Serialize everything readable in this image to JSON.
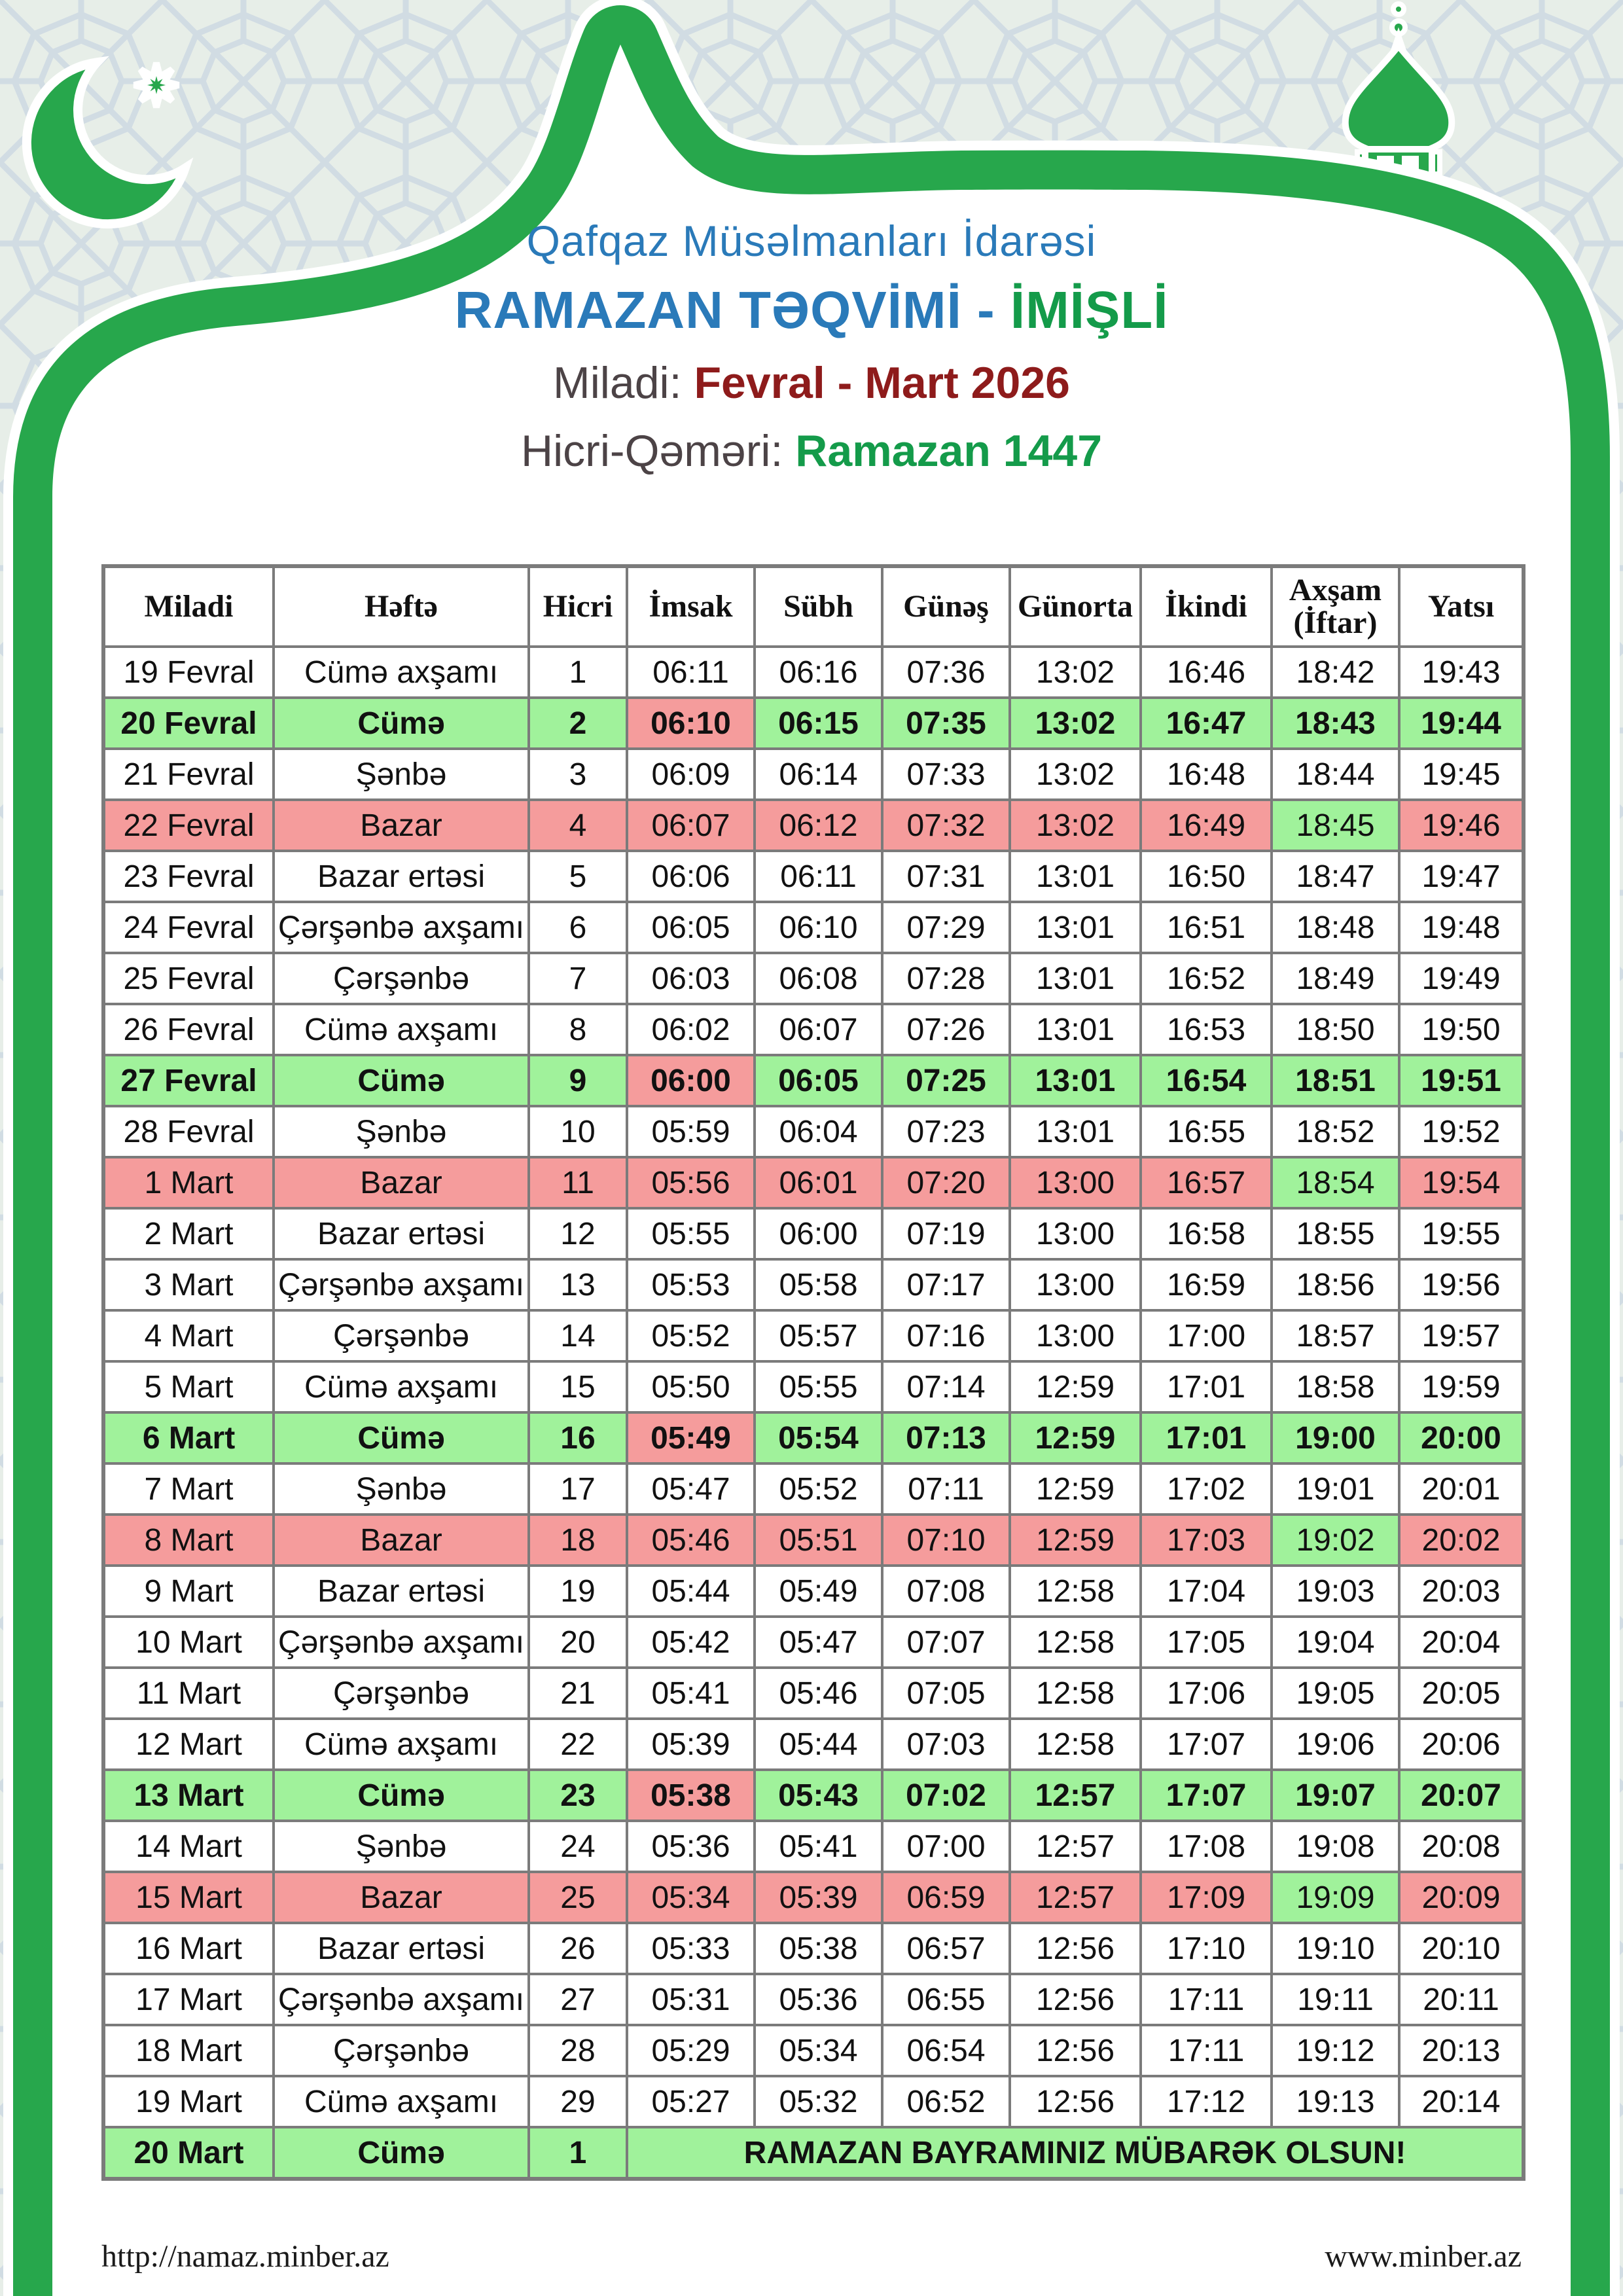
{
  "header": {
    "organization": "Qafqaz Müsəlmanları İdarəsi",
    "calendar_title": "RAMAZAN TƏQVİMİ - ",
    "city": "İMİŞLİ",
    "miladi_label": "Miladi: ",
    "miladi_value": "Fevral - Mart 2026",
    "hicri_label": "Hicri-Qəməri: ",
    "hicri_value": "Ramazan 1447"
  },
  "decorations": {
    "crescent_icon": "crescent-moon",
    "star_icon": "eight-point-star",
    "minaret_icon": "mosque-minaret",
    "frame": "ogee-arch-frame"
  },
  "colors": {
    "brand_green": "#27a74c",
    "cell_pink": "#f59c9c",
    "cell_green": "#a0f29b",
    "grid_gray": "#7b7b7b",
    "title_blue": "#2a7ab9",
    "city_green": "#149b4a",
    "date_red": "#8e1b1b",
    "label_gray": "#4c4346",
    "pattern_bg": "#e7eee8",
    "pattern_line": "#ccd7e3"
  },
  "table": {
    "headers": [
      "Miladi",
      "Həftə",
      "Hicri",
      "İmsak",
      "Sübh",
      "Günəş",
      "Günorta",
      "İkindi",
      "Axşam (İftar)",
      "Yatsı"
    ],
    "rows": [
      {
        "miladi": "19 Fevral",
        "hefte": "Cümə axşamı",
        "hicri": "1",
        "imsak": "06:11",
        "subh": "06:16",
        "gunes": "07:36",
        "gunorta": "13:02",
        "ikindi": "16:46",
        "axsam": "18:42",
        "yatsi": "19:43",
        "highlight": null
      },
      {
        "miladi": "20 Fevral",
        "hefte": "Cümə",
        "hicri": "2",
        "imsak": "06:10",
        "subh": "06:15",
        "gunes": "07:35",
        "gunorta": "13:02",
        "ikindi": "16:47",
        "axsam": "18:43",
        "yatsi": "19:44",
        "highlight": "friday"
      },
      {
        "miladi": "21 Fevral",
        "hefte": "Şənbə",
        "hicri": "3",
        "imsak": "06:09",
        "subh": "06:14",
        "gunes": "07:33",
        "gunorta": "13:02",
        "ikindi": "16:48",
        "axsam": "18:44",
        "yatsi": "19:45",
        "highlight": null
      },
      {
        "miladi": "22 Fevral",
        "hefte": "Bazar",
        "hicri": "4",
        "imsak": "06:07",
        "subh": "06:12",
        "gunes": "07:32",
        "gunorta": "13:02",
        "ikindi": "16:49",
        "axsam": "18:45",
        "yatsi": "19:46",
        "highlight": "sunday"
      },
      {
        "miladi": "23 Fevral",
        "hefte": "Bazar ertəsi",
        "hicri": "5",
        "imsak": "06:06",
        "subh": "06:11",
        "gunes": "07:31",
        "gunorta": "13:01",
        "ikindi": "16:50",
        "axsam": "18:47",
        "yatsi": "19:47",
        "highlight": null
      },
      {
        "miladi": "24 Fevral",
        "hefte": "Çərşənbə axşamı",
        "hicri": "6",
        "imsak": "06:05",
        "subh": "06:10",
        "gunes": "07:29",
        "gunorta": "13:01",
        "ikindi": "16:51",
        "axsam": "18:48",
        "yatsi": "19:48",
        "highlight": null
      },
      {
        "miladi": "25 Fevral",
        "hefte": "Çərşənbə",
        "hicri": "7",
        "imsak": "06:03",
        "subh": "06:08",
        "gunes": "07:28",
        "gunorta": "13:01",
        "ikindi": "16:52",
        "axsam": "18:49",
        "yatsi": "19:49",
        "highlight": null
      },
      {
        "miladi": "26 Fevral",
        "hefte": "Cümə axşamı",
        "hicri": "8",
        "imsak": "06:02",
        "subh": "06:07",
        "gunes": "07:26",
        "gunorta": "13:01",
        "ikindi": "16:53",
        "axsam": "18:50",
        "yatsi": "19:50",
        "highlight": null
      },
      {
        "miladi": "27 Fevral",
        "hefte": "Cümə",
        "hicri": "9",
        "imsak": "06:00",
        "subh": "06:05",
        "gunes": "07:25",
        "gunorta": "13:01",
        "ikindi": "16:54",
        "axsam": "18:51",
        "yatsi": "19:51",
        "highlight": "friday"
      },
      {
        "miladi": "28 Fevral",
        "hefte": "Şənbə",
        "hicri": "10",
        "imsak": "05:59",
        "subh": "06:04",
        "gunes": "07:23",
        "gunorta": "13:01",
        "ikindi": "16:55",
        "axsam": "18:52",
        "yatsi": "19:52",
        "highlight": null
      },
      {
        "miladi": "1 Mart",
        "hefte": "Bazar",
        "hicri": "11",
        "imsak": "05:56",
        "subh": "06:01",
        "gunes": "07:20",
        "gunorta": "13:00",
        "ikindi": "16:57",
        "axsam": "18:54",
        "yatsi": "19:54",
        "highlight": "sunday"
      },
      {
        "miladi": "2 Mart",
        "hefte": "Bazar ertəsi",
        "hicri": "12",
        "imsak": "05:55",
        "subh": "06:00",
        "gunes": "07:19",
        "gunorta": "13:00",
        "ikindi": "16:58",
        "axsam": "18:55",
        "yatsi": "19:55",
        "highlight": null
      },
      {
        "miladi": "3 Mart",
        "hefte": "Çərşənbə axşamı",
        "hicri": "13",
        "imsak": "05:53",
        "subh": "05:58",
        "gunes": "07:17",
        "gunorta": "13:00",
        "ikindi": "16:59",
        "axsam": "18:56",
        "yatsi": "19:56",
        "highlight": null
      },
      {
        "miladi": "4 Mart",
        "hefte": "Çərşənbə",
        "hicri": "14",
        "imsak": "05:52",
        "subh": "05:57",
        "gunes": "07:16",
        "gunorta": "13:00",
        "ikindi": "17:00",
        "axsam": "18:57",
        "yatsi": "19:57",
        "highlight": null
      },
      {
        "miladi": "5 Mart",
        "hefte": "Cümə axşamı",
        "hicri": "15",
        "imsak": "05:50",
        "subh": "05:55",
        "gunes": "07:14",
        "gunorta": "12:59",
        "ikindi": "17:01",
        "axsam": "18:58",
        "yatsi": "19:59",
        "highlight": null
      },
      {
        "miladi": "6 Mart",
        "hefte": "Cümə",
        "hicri": "16",
        "imsak": "05:49",
        "subh": "05:54",
        "gunes": "07:13",
        "gunorta": "12:59",
        "ikindi": "17:01",
        "axsam": "19:00",
        "yatsi": "20:00",
        "highlight": "friday"
      },
      {
        "miladi": "7 Mart",
        "hefte": "Şənbə",
        "hicri": "17",
        "imsak": "05:47",
        "subh": "05:52",
        "gunes": "07:11",
        "gunorta": "12:59",
        "ikindi": "17:02",
        "axsam": "19:01",
        "yatsi": "20:01",
        "highlight": null
      },
      {
        "miladi": "8 Mart",
        "hefte": "Bazar",
        "hicri": "18",
        "imsak": "05:46",
        "subh": "05:51",
        "gunes": "07:10",
        "gunorta": "12:59",
        "ikindi": "17:03",
        "axsam": "19:02",
        "yatsi": "20:02",
        "highlight": "sunday"
      },
      {
        "miladi": "9 Mart",
        "hefte": "Bazar ertəsi",
        "hicri": "19",
        "imsak": "05:44",
        "subh": "05:49",
        "gunes": "07:08",
        "gunorta": "12:58",
        "ikindi": "17:04",
        "axsam": "19:03",
        "yatsi": "20:03",
        "highlight": null
      },
      {
        "miladi": "10 Mart",
        "hefte": "Çərşənbə axşamı",
        "hicri": "20",
        "imsak": "05:42",
        "subh": "05:47",
        "gunes": "07:07",
        "gunorta": "12:58",
        "ikindi": "17:05",
        "axsam": "19:04",
        "yatsi": "20:04",
        "highlight": null
      },
      {
        "miladi": "11 Mart",
        "hefte": "Çərşənbə",
        "hicri": "21",
        "imsak": "05:41",
        "subh": "05:46",
        "gunes": "07:05",
        "gunorta": "12:58",
        "ikindi": "17:06",
        "axsam": "19:05",
        "yatsi": "20:05",
        "highlight": null
      },
      {
        "miladi": "12 Mart",
        "hefte": "Cümə axşamı",
        "hicri": "22",
        "imsak": "05:39",
        "subh": "05:44",
        "gunes": "07:03",
        "gunorta": "12:58",
        "ikindi": "17:07",
        "axsam": "19:06",
        "yatsi": "20:06",
        "highlight": null
      },
      {
        "miladi": "13 Mart",
        "hefte": "Cümə",
        "hicri": "23",
        "imsak": "05:38",
        "subh": "05:43",
        "gunes": "07:02",
        "gunorta": "12:57",
        "ikindi": "17:07",
        "axsam": "19:07",
        "yatsi": "20:07",
        "highlight": "friday"
      },
      {
        "miladi": "14 Mart",
        "hefte": "Şənbə",
        "hicri": "24",
        "imsak": "05:36",
        "subh": "05:41",
        "gunes": "07:00",
        "gunorta": "12:57",
        "ikindi": "17:08",
        "axsam": "19:08",
        "yatsi": "20:08",
        "highlight": null
      },
      {
        "miladi": "15 Mart",
        "hefte": "Bazar",
        "hicri": "25",
        "imsak": "05:34",
        "subh": "05:39",
        "gunes": "06:59",
        "gunorta": "12:57",
        "ikindi": "17:09",
        "axsam": "19:09",
        "yatsi": "20:09",
        "highlight": "sunday"
      },
      {
        "miladi": "16 Mart",
        "hefte": "Bazar ertəsi",
        "hicri": "26",
        "imsak": "05:33",
        "subh": "05:38",
        "gunes": "06:57",
        "gunorta": "12:56",
        "ikindi": "17:10",
        "axsam": "19:10",
        "yatsi": "20:10",
        "highlight": null
      },
      {
        "miladi": "17 Mart",
        "hefte": "Çərşənbə axşamı",
        "hicri": "27",
        "imsak": "05:31",
        "subh": "05:36",
        "gunes": "06:55",
        "gunorta": "12:56",
        "ikindi": "17:11",
        "axsam": "19:11",
        "yatsi": "20:11",
        "highlight": null
      },
      {
        "miladi": "18 Mart",
        "hefte": "Çərşənbə",
        "hicri": "28",
        "imsak": "05:29",
        "subh": "05:34",
        "gunes": "06:54",
        "gunorta": "12:56",
        "ikindi": "17:11",
        "axsam": "19:12",
        "yatsi": "20:13",
        "highlight": null
      },
      {
        "miladi": "19 Mart",
        "hefte": "Cümə axşamı",
        "hicri": "29",
        "imsak": "05:27",
        "subh": "05:32",
        "gunes": "06:52",
        "gunorta": "12:56",
        "ikindi": "17:12",
        "axsam": "19:13",
        "yatsi": "20:14",
        "highlight": null
      }
    ],
    "final_row": {
      "miladi": "20 Mart",
      "hefte": "Cümə",
      "hicri": "1",
      "message": "RAMAZAN BAYRAMINIZ MÜBARƏK OLSUN!"
    }
  },
  "footer": {
    "left_url": "http://namaz.minber.az",
    "right_url": "www.minber.az"
  }
}
